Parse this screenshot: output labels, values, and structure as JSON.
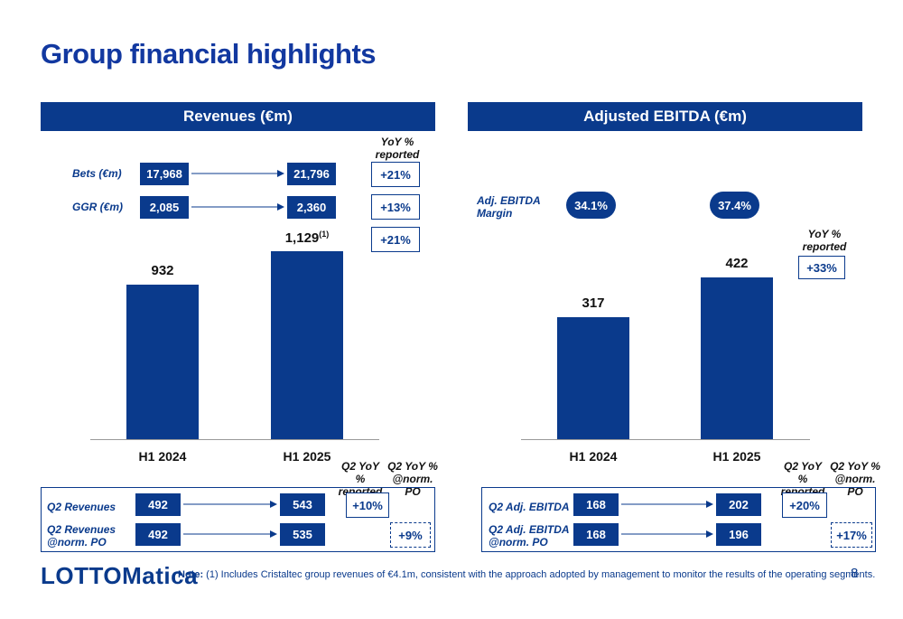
{
  "title": "Group financial highlights",
  "revenues": {
    "header": "Revenues (€m)",
    "yoy_header": "YoY % reported",
    "rows": [
      {
        "label": "Bets (€m)",
        "h1_2024": "17,968",
        "h1_2025": "21,796",
        "yoy": "+21%"
      },
      {
        "label": "GGR (€m)",
        "h1_2024": "2,085",
        "h1_2025": "2,360",
        "yoy": "+13%"
      }
    ],
    "bar_yoy": "+21%",
    "bars": [
      {
        "category": "H1 2024",
        "value": 932,
        "label": "932",
        "footnote": ""
      },
      {
        "category": "H1 2025",
        "value": 1129,
        "label": "1,129",
        "footnote": "(1)"
      }
    ],
    "q2_header_reported": "Q2 YoY % reported",
    "q2_header_norm": "Q2 YoY % @norm. PO",
    "q2_rows": [
      {
        "label": "Q2 Revenues",
        "h1_2024": "492",
        "h1_2025": "543",
        "yoy": "+10%",
        "style": "solid"
      },
      {
        "label": "Q2 Revenues @norm. PO",
        "h1_2024": "492",
        "h1_2025": "535",
        "yoy": "+9%",
        "style": "dashed"
      }
    ]
  },
  "ebitda": {
    "header": "Adjusted EBITDA (€m)",
    "margin_label": "Adj. EBITDA Margin",
    "margins": [
      "34.1%",
      "37.4%"
    ],
    "yoy_header": "YoY % reported",
    "bar_yoy": "+33%",
    "bars": [
      {
        "category": "H1 2024",
        "value": 317,
        "label": "317"
      },
      {
        "category": "H1 2025",
        "value": 422,
        "label": "422"
      }
    ],
    "q2_header_reported": "Q2 YoY % reported",
    "q2_header_norm": "Q2 YoY % @norm. PO",
    "q2_rows": [
      {
        "label": "Q2 Adj. EBITDA",
        "h1_2024": "168",
        "h1_2025": "202",
        "yoy": "+20%",
        "style": "solid"
      },
      {
        "label": "Q2 Adj. EBITDA @norm. PO",
        "h1_2024": "168",
        "h1_2025": "196",
        "yoy": "+17%",
        "style": "dashed"
      }
    ]
  },
  "chart_data": [
    {
      "type": "bar",
      "title": "Revenues (€m)",
      "categories": [
        "H1 2024",
        "H1 2025"
      ],
      "values": [
        932,
        1129
      ],
      "xlabel": "",
      "ylabel": ""
    },
    {
      "type": "bar",
      "title": "Adjusted EBITDA (€m)",
      "categories": [
        "H1 2024",
        "H1 2025"
      ],
      "values": [
        317,
        422
      ],
      "xlabel": "",
      "ylabel": ""
    }
  ],
  "footer": {
    "logo": "LOTTOMatica",
    "note_label": "Note:",
    "note_text": " (1) Includes Cristaltec group revenues of €4.1m, consistent with the approach adopted by management to monitor the results of the operating segments.",
    "page_number": "8"
  },
  "colors": {
    "brand": "#0a3a8c"
  }
}
